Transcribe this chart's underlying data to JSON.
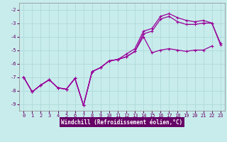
{
  "xlabel": "Windchill (Refroidissement éolien,°C)",
  "xlim": [
    -0.5,
    23.5
  ],
  "ylim": [
    -9.5,
    -1.5
  ],
  "yticks": [
    -9,
    -8,
    -7,
    -6,
    -5,
    -4,
    -3,
    -2
  ],
  "xticks": [
    0,
    1,
    2,
    3,
    4,
    5,
    6,
    7,
    8,
    9,
    10,
    11,
    12,
    13,
    14,
    15,
    16,
    17,
    18,
    19,
    20,
    21,
    22,
    23
  ],
  "bg_color": "#c8ecec",
  "grid_color": "#b0d8d8",
  "line_color": "#990099",
  "line1_x": [
    0,
    1,
    2,
    3,
    4,
    5,
    6,
    7,
    8,
    9,
    10,
    11,
    12,
    13,
    14,
    15,
    16,
    17,
    18,
    19,
    20,
    21,
    22
  ],
  "line1_y": [
    -7.0,
    -8.1,
    -7.6,
    -7.2,
    -7.8,
    -7.9,
    -7.1,
    -9.1,
    -6.6,
    -6.3,
    -5.8,
    -5.7,
    -5.5,
    -5.1,
    -4.0,
    -5.2,
    -5.0,
    -4.9,
    -5.0,
    -5.1,
    -5.0,
    -5.0,
    -4.7
  ],
  "line2_x": [
    0,
    1,
    2,
    3,
    4,
    5,
    6,
    7,
    8,
    9,
    10,
    11,
    12,
    13,
    14,
    15,
    16,
    17,
    18,
    19,
    20,
    21,
    22,
    23
  ],
  "line2_y": [
    -7.0,
    -8.1,
    -7.6,
    -7.2,
    -7.8,
    -7.9,
    -7.1,
    -9.1,
    -6.6,
    -6.3,
    -5.8,
    -5.7,
    -5.5,
    -5.1,
    -3.8,
    -3.6,
    -2.7,
    -2.5,
    -2.9,
    -3.1,
    -3.1,
    -3.0,
    -3.0,
    -4.6
  ],
  "line3_x": [
    0,
    1,
    2,
    3,
    4,
    5,
    6,
    7,
    8,
    9,
    10,
    11,
    12,
    13,
    14,
    15,
    16,
    17,
    18,
    19,
    20,
    21,
    22,
    23
  ],
  "line3_y": [
    -7.0,
    -8.1,
    -7.6,
    -7.2,
    -7.8,
    -7.9,
    -7.1,
    -9.1,
    -6.6,
    -6.3,
    -5.8,
    -5.7,
    -5.3,
    -4.9,
    -3.6,
    -3.4,
    -2.5,
    -2.3,
    -2.6,
    -2.8,
    -2.9,
    -2.8,
    -3.0,
    -4.5
  ],
  "xlabel_bg": "#660066",
  "tick_color": "#660066",
  "label_fontsize": 5.5,
  "tick_fontsize": 5.0
}
